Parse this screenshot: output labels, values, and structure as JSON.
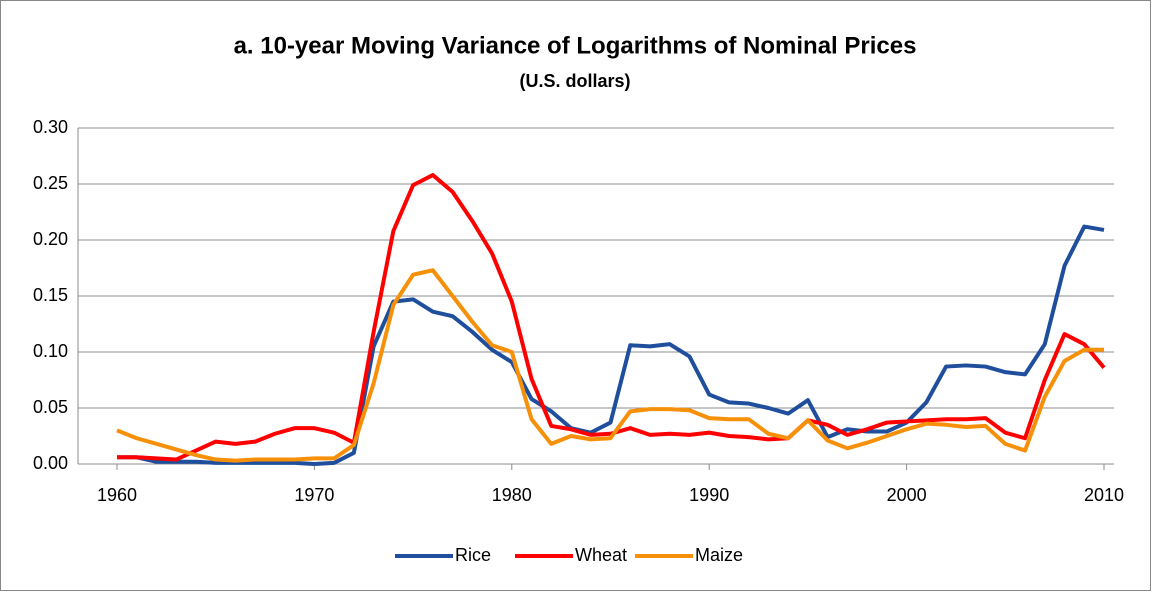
{
  "chart_data": {
    "type": "line",
    "title": "a. 10-year Moving Variance of Logarithms of Nominal Prices",
    "subtitle": "(U.S. dollars)",
    "x": [
      1960,
      1961,
      1962,
      1963,
      1964,
      1965,
      1966,
      1967,
      1968,
      1969,
      1970,
      1971,
      1972,
      1973,
      1974,
      1975,
      1976,
      1977,
      1978,
      1979,
      1980,
      1981,
      1982,
      1983,
      1984,
      1985,
      1986,
      1987,
      1988,
      1989,
      1990,
      1991,
      1992,
      1993,
      1994,
      1995,
      1996,
      1997,
      1998,
      1999,
      2000,
      2001,
      2002,
      2003,
      2004,
      2005,
      2006,
      2007,
      2008,
      2009,
      2010
    ],
    "series": [
      {
        "name": "Rice",
        "color": "#1f4e9c",
        "values": [
          0.006,
          0.006,
          0.002,
          0.002,
          0.002,
          0.001,
          0.001,
          0.001,
          0.001,
          0.001,
          0.0,
          0.001,
          0.01,
          0.105,
          0.145,
          0.147,
          0.136,
          0.132,
          0.118,
          0.102,
          0.091,
          0.058,
          0.047,
          0.032,
          0.028,
          0.037,
          0.106,
          0.105,
          0.107,
          0.096,
          0.062,
          0.055,
          0.054,
          0.05,
          0.045,
          0.057,
          0.024,
          0.031,
          0.029,
          0.029,
          0.037,
          0.055,
          0.087,
          0.088,
          0.087,
          0.082,
          0.08,
          0.107,
          0.177,
          0.212,
          0.209
        ]
      },
      {
        "name": "Wheat",
        "color": "#ff0000",
        "values": [
          0.006,
          0.006,
          0.005,
          0.004,
          0.012,
          0.02,
          0.018,
          0.02,
          0.027,
          0.032,
          0.032,
          0.028,
          0.019,
          0.118,
          0.208,
          0.249,
          0.258,
          0.243,
          0.217,
          0.188,
          0.145,
          0.076,
          0.034,
          0.031,
          0.026,
          0.027,
          0.032,
          0.026,
          0.027,
          0.026,
          0.028,
          0.025,
          0.024,
          0.022,
          0.023,
          0.039,
          0.035,
          0.026,
          0.031,
          0.037,
          0.038,
          0.039,
          0.04,
          0.04,
          0.041,
          0.028,
          0.023,
          0.075,
          0.116,
          0.107,
          0.086
        ]
      },
      {
        "name": "Maize",
        "color": "#f79009",
        "values": [
          0.03,
          0.023,
          0.018,
          0.013,
          0.008,
          0.004,
          0.003,
          0.004,
          0.004,
          0.004,
          0.005,
          0.005,
          0.017,
          0.072,
          0.142,
          0.169,
          0.173,
          0.15,
          0.127,
          0.106,
          0.1,
          0.04,
          0.018,
          0.025,
          0.022,
          0.023,
          0.047,
          0.049,
          0.049,
          0.048,
          0.041,
          0.04,
          0.04,
          0.027,
          0.023,
          0.039,
          0.021,
          0.014,
          0.019,
          0.025,
          0.031,
          0.036,
          0.035,
          0.033,
          0.034,
          0.018,
          0.012,
          0.06,
          0.092,
          0.102,
          0.102
        ]
      }
    ],
    "xlim": [
      1960,
      2010
    ],
    "xticks": [
      1960,
      1970,
      1980,
      1990,
      2000,
      2010
    ],
    "ylim": [
      0,
      0.3
    ],
    "yticks": [
      {
        "value": 0,
        "label": "0.00"
      },
      {
        "value": 0.05,
        "label": "0.05"
      },
      {
        "value": 0.1,
        "label": "0.10"
      },
      {
        "value": 0.15,
        "label": "0.15"
      },
      {
        "value": 0.2,
        "label": "0.20"
      },
      {
        "value": 0.25,
        "label": "0.25"
      },
      {
        "value": 0.3,
        "label": "0.30"
      }
    ],
    "grid": true,
    "legend": "bottom"
  }
}
